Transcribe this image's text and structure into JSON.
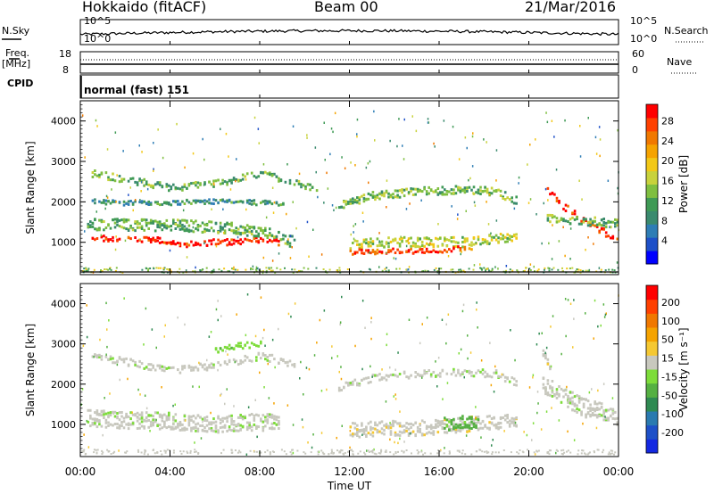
{
  "header": {
    "radar": "Hokkaido (fitACF)",
    "beam": "Beam 00",
    "date": "21/Mar/2016"
  },
  "strips": {
    "nsky_label": "N.Sky",
    "nsearch_label": "N.Search",
    "nsky_scale_top": "10^5",
    "nsky_scale_bottom": "10^0",
    "freq_label": "Freq.",
    "freq_unit": "[MHz]",
    "freq_ticks": [
      "18",
      "8"
    ],
    "nave_label": "Nave",
    "nave_ticks": [
      "60",
      "0"
    ],
    "cpid_label": "CPID",
    "cpid_value": "normal (fast) 151"
  },
  "colors": {
    "power_scale": [
      "#0000ff",
      "#1e50c8",
      "#2e7db5",
      "#3a8a6e",
      "#3f9a55",
      "#7fbf40",
      "#c8d23c",
      "#f2c817",
      "#f5a300",
      "#f07800",
      "#ff4000",
      "#ff0000"
    ],
    "velocity_scale": [
      "#1428e1",
      "#1e50c8",
      "#2a7ab0",
      "#2f8a52",
      "#55b042",
      "#7ddc3a",
      "#c8c8be",
      "#f5c832",
      "#f5a300",
      "#f07800",
      "#ff4000",
      "#ff0000"
    ],
    "ground_scatter": "#c8c8be"
  },
  "chart_data": [
    {
      "type": "heatmap",
      "name": "power",
      "ylabel": "Slant Range [km]",
      "yticks": [
        1000,
        2000,
        3000,
        4000
      ],
      "ylim": [
        200,
        4500
      ],
      "colorbar": {
        "label": "Power [dB]",
        "ticks": [
          "28",
          "24",
          "20",
          "16",
          "12",
          "8",
          "4"
        ],
        "range": [
          0,
          30
        ]
      },
      "bands": [
        {
          "points": [
            [
              0.5,
              1100
            ],
            [
              2,
              1060
            ],
            [
              3,
              1080
            ],
            [
              4,
              1000
            ],
            [
              5,
              940
            ],
            [
              6,
              1000
            ],
            [
              7,
              1000
            ],
            [
              8,
              1060
            ],
            [
              8.8,
              1000
            ]
          ],
          "width": 90,
          "value": 28
        },
        {
          "points": [
            [
              0.3,
              1450
            ],
            [
              2,
              1430
            ],
            [
              4,
              1420
            ],
            [
              6,
              1380
            ],
            [
              7.5,
              1300
            ],
            [
              8.5,
              1200
            ],
            [
              9.5,
              1000
            ]
          ],
          "width": 180,
          "value": 12
        },
        {
          "points": [
            [
              0.5,
              2700
            ],
            [
              2,
              2550
            ],
            [
              4,
              2350
            ],
            [
              6,
              2450
            ],
            [
              8,
              2700
            ],
            [
              9.5,
              2500
            ],
            [
              10.5,
              2300
            ]
          ],
          "width": 110,
          "value": 12
        },
        {
          "points": [
            [
              0.5,
              2000
            ],
            [
              3,
              1950
            ],
            [
              5,
              2000
            ],
            [
              7,
              2000
            ],
            [
              9,
              1950
            ]
          ],
          "width": 70,
          "value": 9
        },
        {
          "points": [
            [
              11.5,
              1900
            ],
            [
              13,
              2150
            ],
            [
              15,
              2250
            ],
            [
              17,
              2300
            ],
            [
              18.5,
              2250
            ],
            [
              19.5,
              2000
            ]
          ],
          "width": 120,
          "value": 13
        },
        {
          "points": [
            [
              12,
              900
            ],
            [
              13,
              1000
            ],
            [
              15,
              1000
            ],
            [
              17,
              1000
            ],
            [
              18.5,
              1080
            ],
            [
              19.5,
              1100
            ]
          ],
          "width": 150,
          "value": 16
        },
        {
          "points": [
            [
              12,
              760
            ],
            [
              14,
              780
            ],
            [
              16,
              800
            ],
            [
              17.5,
              880
            ]
          ],
          "width": 80,
          "value": 26
        },
        {
          "points": [
            [
              20.8,
              2300
            ],
            [
              21.5,
              1900
            ],
            [
              22.5,
              1500
            ],
            [
              23.5,
              1200
            ],
            [
              24,
              1100
            ]
          ],
          "width": 110,
          "value": 27
        },
        {
          "points": [
            [
              20.8,
              1600
            ],
            [
              22,
              1550
            ],
            [
              23,
              1500
            ],
            [
              24,
              1450
            ]
          ],
          "width": 130,
          "value": 12
        }
      ],
      "x_ticks": [
        "00:00",
        "04:00",
        "08:00",
        "12:00",
        "16:00",
        "20:00",
        "00:00"
      ]
    },
    {
      "type": "heatmap",
      "name": "velocity",
      "ylabel": "Slant Range [km]",
      "yticks": [
        1000,
        2000,
        3000,
        4000
      ],
      "ylim": [
        200,
        4500
      ],
      "colorbar": {
        "label": "Velocity [m s⁻¹]",
        "ticks": [
          "200",
          "100",
          "50",
          "15",
          "-15",
          "-50",
          "-100",
          "-200"
        ],
        "range": [
          -250,
          250
        ]
      },
      "bands": [
        {
          "points": [
            [
              0.3,
              1150
            ],
            [
              2,
              1100
            ],
            [
              4,
              1080
            ],
            [
              6,
              1000
            ],
            [
              7.5,
              1050
            ],
            [
              8.8,
              1050
            ]
          ],
          "width": 260,
          "value": 0
        },
        {
          "points": [
            [
              0.5,
              2700
            ],
            [
              2,
              2550
            ],
            [
              4,
              2350
            ],
            [
              6,
              2450
            ],
            [
              8,
              2700
            ],
            [
              9.5,
              2500
            ]
          ],
          "width": 110,
          "value": 0
        },
        {
          "points": [
            [
              6,
              2850
            ],
            [
              7,
              2950
            ],
            [
              8,
              3000
            ]
          ],
          "width": 90,
          "value": -40
        },
        {
          "points": [
            [
              11.5,
              1900
            ],
            [
              13,
              2150
            ],
            [
              15,
              2250
            ],
            [
              17,
              2300
            ],
            [
              18.5,
              2250
            ],
            [
              19.5,
              2000
            ]
          ],
          "width": 110,
          "value": 0
        },
        {
          "points": [
            [
              12,
              850
            ],
            [
              13.5,
              900
            ],
            [
              15,
              900
            ],
            [
              16.5,
              950
            ],
            [
              18,
              1050
            ],
            [
              19.5,
              1050
            ]
          ],
          "width": 230,
          "value": 40
        },
        {
          "points": [
            [
              16.2,
              1000
            ],
            [
              17,
              1050
            ],
            [
              17.8,
              1050
            ]
          ],
          "width": 200,
          "value": -45
        },
        {
          "points": [
            [
              20.6,
              2000
            ],
            [
              21.5,
              1700
            ],
            [
              22.5,
              1400
            ],
            [
              24,
              1200
            ]
          ],
          "width": 280,
          "value": 0
        },
        {
          "points": [
            [
              20.6,
              2800
            ],
            [
              21,
              2300
            ]
          ],
          "width": 120,
          "value": 40
        }
      ],
      "xlabel": "Time UT",
      "x_ticks": [
        "00:00",
        "04:00",
        "08:00",
        "12:00",
        "16:00",
        "20:00",
        "00:00"
      ]
    }
  ]
}
